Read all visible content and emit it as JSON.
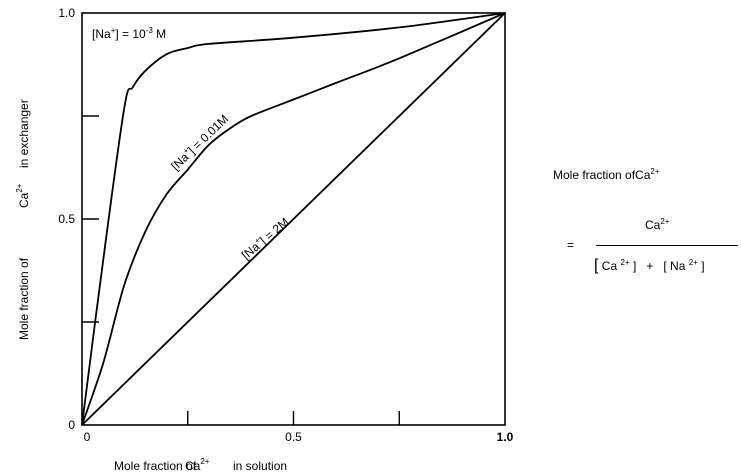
{
  "chart_data": {
    "type": "line",
    "xlabel": "Mole fraction of Ca2+ in solution",
    "ylabel": "Mole fraction of Ca2+ in exchanger",
    "xlim": [
      0,
      1
    ],
    "ylim": [
      0,
      1
    ],
    "x_tick_labels": [
      "0",
      "0.5",
      "1.0"
    ],
    "y_tick_labels": [
      "0",
      "0.5",
      "1.0"
    ],
    "grid": false,
    "series": [
      {
        "name": "[Na+] = 10^-3 M",
        "points": [
          [
            0,
            0
          ],
          [
            0.05,
            0.4
          ],
          [
            0.1,
            0.77
          ],
          [
            0.12,
            0.82
          ],
          [
            0.15,
            0.86
          ],
          [
            0.2,
            0.9
          ],
          [
            0.25,
            0.915
          ],
          [
            0.3,
            0.925
          ],
          [
            0.5,
            0.94
          ],
          [
            0.75,
            0.965
          ],
          [
            1,
            1
          ]
        ]
      },
      {
        "name": "[Na+] = 0.01M",
        "points": [
          [
            0,
            0
          ],
          [
            0.05,
            0.15
          ],
          [
            0.1,
            0.34
          ],
          [
            0.15,
            0.47
          ],
          [
            0.2,
            0.56
          ],
          [
            0.25,
            0.62
          ],
          [
            0.3,
            0.68
          ],
          [
            0.35,
            0.72
          ],
          [
            0.4,
            0.75
          ],
          [
            0.5,
            0.79
          ],
          [
            0.6,
            0.83
          ],
          [
            0.75,
            0.89
          ],
          [
            1,
            1
          ]
        ]
      },
      {
        "name": "[Na+] = 2M",
        "points": [
          [
            0,
            0
          ],
          [
            1,
            1
          ]
        ]
      }
    ]
  },
  "labels": {
    "x_axis": {
      "prefix": "Mole fraction of",
      "ion": "Ca",
      "charge": "2+",
      "suffix": "in solution"
    },
    "y_axis": {
      "prefix": "Mole fraction of",
      "ion": "Ca",
      "charge": "2+",
      "suffix": "in exchanger"
    },
    "curve_1": {
      "pre": "[Na",
      "sup1": "+",
      "mid": "] =  10",
      "sup2": "-3",
      "post": " M"
    },
    "curve_2": {
      "pre": "[Na",
      "sup1": "+",
      "post": "] = 0.01M"
    },
    "curve_3": {
      "pre": "[Na",
      "sup1": "+",
      "post": "] = 2M"
    }
  },
  "equation": {
    "title_prefix": "Mole fraction of",
    "title_ion": "Ca",
    "title_charge": "2+",
    "equals": "=",
    "numerator_ion": "Ca",
    "numerator_charge": "2+",
    "den_open": "[",
    "den_ca": "Ca",
    "den_ca_charge": "2+",
    "den_close1": "]",
    "den_plus": "+",
    "den_open2": "[",
    "den_na": "Na",
    "den_na_charge": "2+",
    "den_close2": "]"
  }
}
